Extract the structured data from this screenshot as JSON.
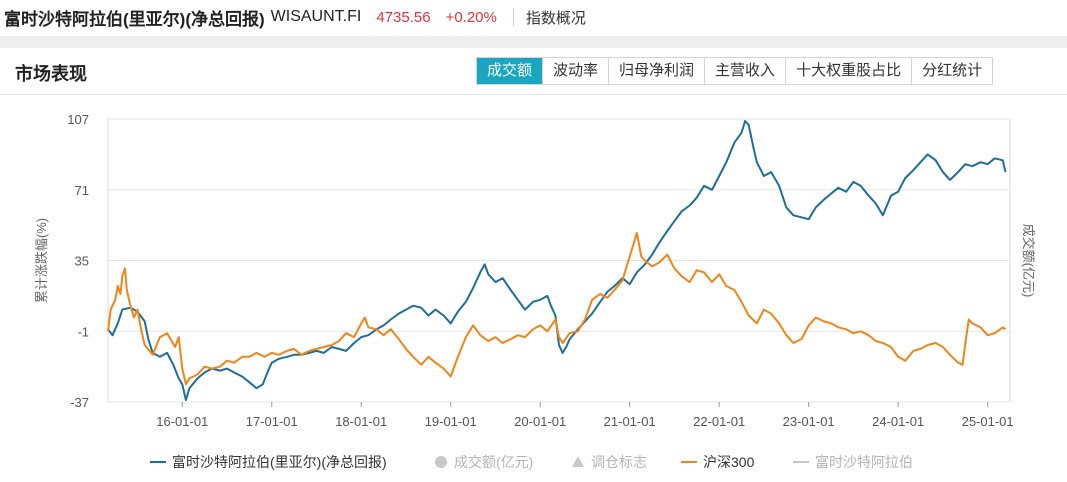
{
  "header": {
    "title": "富时沙特阿拉伯(里亚尔)(净总回报)",
    "code": "WISAUNT.FI",
    "price": "4735.56",
    "change": "+0.20%",
    "overview_link": "指数概况"
  },
  "section": {
    "title": "市场表现",
    "tabs": [
      {
        "label": "成交额",
        "active": true
      },
      {
        "label": "波动率",
        "active": false
      },
      {
        "label": "归母净利润",
        "active": false
      },
      {
        "label": "主营收入",
        "active": false
      },
      {
        "label": "十大权重股占比",
        "active": false
      },
      {
        "label": "分红统计",
        "active": false
      }
    ]
  },
  "colors": {
    "primary_series": "#1f6e96",
    "secondary_series": "#f18518",
    "inactive": "#c8c8c8",
    "active_tab": "#1aa6c0"
  },
  "chart_data": {
    "type": "line",
    "ylabel": "累计涨跌幅(%)",
    "y2label": "成交额(亿元)",
    "ylim": [
      -37,
      107
    ],
    "yticks": [
      "107",
      "71",
      "35",
      "-1",
      "-37"
    ],
    "ytick_values": [
      107,
      71,
      35,
      -1,
      -37
    ],
    "xlim": [
      2015.17,
      2025.25
    ],
    "xticks": [
      "16-01-01",
      "17-01-01",
      "18-01-01",
      "19-01-01",
      "20-01-01",
      "21-01-01",
      "22-01-01",
      "23-01-01",
      "24-01-01",
      "25-01-01"
    ],
    "xtick_values": [
      2016,
      2017,
      2018,
      2019,
      2020,
      2021,
      2022,
      2023,
      2024,
      2025
    ],
    "grid": true,
    "legend_position": "bottom",
    "legend": [
      {
        "label": "富时沙特阿拉伯(里亚尔)(净总回报)",
        "marker": "line",
        "active": true
      },
      {
        "label": "成交额(亿元)",
        "marker": "circle",
        "active": false
      },
      {
        "label": "调仓标志",
        "marker": "triangle",
        "active": false
      },
      {
        "label": "沪深300",
        "marker": "line",
        "active": true
      },
      {
        "label": "富时沙特阿拉伯",
        "marker": "line",
        "active": false
      }
    ],
    "series": [
      {
        "name": "富时沙特阿拉伯(里亚尔)(净总回报)",
        "points": [
          [
            2015.17,
            0
          ],
          [
            2015.22,
            -3
          ],
          [
            2015.28,
            3
          ],
          [
            2015.33,
            10
          ],
          [
            2015.42,
            11
          ],
          [
            2015.5,
            9
          ],
          [
            2015.58,
            4
          ],
          [
            2015.62,
            -5
          ],
          [
            2015.67,
            -12
          ],
          [
            2015.75,
            -14
          ],
          [
            2015.83,
            -12
          ],
          [
            2015.9,
            -18
          ],
          [
            2015.96,
            -25
          ],
          [
            2016.0,
            -28
          ],
          [
            2016.04,
            -36
          ],
          [
            2016.08,
            -30
          ],
          [
            2016.17,
            -25
          ],
          [
            2016.25,
            -22
          ],
          [
            2016.33,
            -20
          ],
          [
            2016.42,
            -21
          ],
          [
            2016.5,
            -20
          ],
          [
            2016.58,
            -22
          ],
          [
            2016.67,
            -24
          ],
          [
            2016.75,
            -27
          ],
          [
            2016.83,
            -30
          ],
          [
            2016.9,
            -28
          ],
          [
            2016.96,
            -21
          ],
          [
            2017.0,
            -17
          ],
          [
            2017.08,
            -15
          ],
          [
            2017.17,
            -14
          ],
          [
            2017.25,
            -13
          ],
          [
            2017.33,
            -13
          ],
          [
            2017.42,
            -12
          ],
          [
            2017.5,
            -11
          ],
          [
            2017.58,
            -12
          ],
          [
            2017.67,
            -9
          ],
          [
            2017.75,
            -10
          ],
          [
            2017.83,
            -11
          ],
          [
            2017.92,
            -7
          ],
          [
            2018.0,
            -4
          ],
          [
            2018.08,
            -3
          ],
          [
            2018.17,
            0
          ],
          [
            2018.25,
            2
          ],
          [
            2018.33,
            5
          ],
          [
            2018.42,
            8
          ],
          [
            2018.5,
            10
          ],
          [
            2018.58,
            12
          ],
          [
            2018.67,
            11
          ],
          [
            2018.75,
            7
          ],
          [
            2018.83,
            10
          ],
          [
            2018.92,
            7
          ],
          [
            2019.0,
            3
          ],
          [
            2019.08,
            9
          ],
          [
            2019.17,
            14
          ],
          [
            2019.25,
            21
          ],
          [
            2019.33,
            29
          ],
          [
            2019.38,
            33
          ],
          [
            2019.42,
            28
          ],
          [
            2019.5,
            24
          ],
          [
            2019.58,
            26
          ],
          [
            2019.67,
            20
          ],
          [
            2019.75,
            15
          ],
          [
            2019.83,
            10
          ],
          [
            2019.92,
            14
          ],
          [
            2020.0,
            15
          ],
          [
            2020.08,
            17
          ],
          [
            2020.12,
            12
          ],
          [
            2020.17,
            7
          ],
          [
            2020.21,
            -8
          ],
          [
            2020.25,
            -12
          ],
          [
            2020.29,
            -9
          ],
          [
            2020.33,
            -5
          ],
          [
            2020.42,
            0
          ],
          [
            2020.5,
            4
          ],
          [
            2020.58,
            8
          ],
          [
            2020.67,
            14
          ],
          [
            2020.75,
            19
          ],
          [
            2020.83,
            22
          ],
          [
            2020.92,
            26
          ],
          [
            2021.0,
            23
          ],
          [
            2021.08,
            29
          ],
          [
            2021.17,
            33
          ],
          [
            2021.25,
            38
          ],
          [
            2021.33,
            44
          ],
          [
            2021.42,
            50
          ],
          [
            2021.5,
            55
          ],
          [
            2021.58,
            60
          ],
          [
            2021.67,
            63
          ],
          [
            2021.75,
            67
          ],
          [
            2021.83,
            73
          ],
          [
            2021.92,
            71
          ],
          [
            2022.0,
            78
          ],
          [
            2022.08,
            85
          ],
          [
            2022.17,
            95
          ],
          [
            2022.25,
            100
          ],
          [
            2022.29,
            106
          ],
          [
            2022.33,
            104
          ],
          [
            2022.38,
            93
          ],
          [
            2022.42,
            85
          ],
          [
            2022.5,
            78
          ],
          [
            2022.58,
            80
          ],
          [
            2022.67,
            73
          ],
          [
            2022.75,
            62
          ],
          [
            2022.83,
            58
          ],
          [
            2022.92,
            57
          ],
          [
            2023.0,
            56
          ],
          [
            2023.08,
            62
          ],
          [
            2023.17,
            66
          ],
          [
            2023.25,
            69
          ],
          [
            2023.33,
            72
          ],
          [
            2023.42,
            70
          ],
          [
            2023.5,
            75
          ],
          [
            2023.58,
            73
          ],
          [
            2023.67,
            68
          ],
          [
            2023.75,
            64
          ],
          [
            2023.83,
            58
          ],
          [
            2023.92,
            68
          ],
          [
            2024.0,
            70
          ],
          [
            2024.08,
            77
          ],
          [
            2024.17,
            81
          ],
          [
            2024.25,
            85
          ],
          [
            2024.33,
            89
          ],
          [
            2024.42,
            86
          ],
          [
            2024.5,
            80
          ],
          [
            2024.58,
            76
          ],
          [
            2024.67,
            80
          ],
          [
            2024.75,
            84
          ],
          [
            2024.83,
            83
          ],
          [
            2024.92,
            85
          ],
          [
            2025.0,
            84
          ],
          [
            2025.08,
            87
          ],
          [
            2025.17,
            86
          ],
          [
            2025.2,
            80
          ]
        ]
      },
      {
        "name": "沪深300",
        "points": [
          [
            2015.17,
            -1
          ],
          [
            2015.2,
            10
          ],
          [
            2015.25,
            15
          ],
          [
            2015.28,
            22
          ],
          [
            2015.31,
            18
          ],
          [
            2015.33,
            27
          ],
          [
            2015.36,
            31
          ],
          [
            2015.38,
            20
          ],
          [
            2015.42,
            12
          ],
          [
            2015.46,
            6
          ],
          [
            2015.5,
            10
          ],
          [
            2015.54,
            0
          ],
          [
            2015.58,
            -8
          ],
          [
            2015.67,
            -13
          ],
          [
            2015.75,
            -4
          ],
          [
            2015.83,
            -2
          ],
          [
            2015.92,
            -9
          ],
          [
            2015.96,
            -4
          ],
          [
            2016.0,
            -20
          ],
          [
            2016.04,
            -28
          ],
          [
            2016.08,
            -25
          ],
          [
            2016.17,
            -23
          ],
          [
            2016.25,
            -19
          ],
          [
            2016.33,
            -20
          ],
          [
            2016.42,
            -19
          ],
          [
            2016.5,
            -16
          ],
          [
            2016.58,
            -17
          ],
          [
            2016.67,
            -14
          ],
          [
            2016.75,
            -14
          ],
          [
            2016.83,
            -12
          ],
          [
            2016.92,
            -14
          ],
          [
            2017.0,
            -12
          ],
          [
            2017.08,
            -13
          ],
          [
            2017.17,
            -11
          ],
          [
            2017.25,
            -10
          ],
          [
            2017.33,
            -13
          ],
          [
            2017.42,
            -11
          ],
          [
            2017.5,
            -10
          ],
          [
            2017.58,
            -9
          ],
          [
            2017.67,
            -8
          ],
          [
            2017.75,
            -6
          ],
          [
            2017.83,
            -2
          ],
          [
            2017.92,
            -4
          ],
          [
            2018.0,
            3
          ],
          [
            2018.04,
            6
          ],
          [
            2018.08,
            1
          ],
          [
            2018.17,
            0
          ],
          [
            2018.25,
            -3
          ],
          [
            2018.33,
            0
          ],
          [
            2018.42,
            -5
          ],
          [
            2018.5,
            -10
          ],
          [
            2018.58,
            -14
          ],
          [
            2018.67,
            -18
          ],
          [
            2018.75,
            -14
          ],
          [
            2018.83,
            -17
          ],
          [
            2018.92,
            -20
          ],
          [
            2019.0,
            -24
          ],
          [
            2019.08,
            -14
          ],
          [
            2019.17,
            -4
          ],
          [
            2019.25,
            2
          ],
          [
            2019.33,
            -3
          ],
          [
            2019.42,
            -6
          ],
          [
            2019.5,
            -4
          ],
          [
            2019.58,
            -7
          ],
          [
            2019.67,
            -5
          ],
          [
            2019.75,
            -3
          ],
          [
            2019.83,
            -4
          ],
          [
            2019.92,
            0
          ],
          [
            2020.0,
            2
          ],
          [
            2020.08,
            -1
          ],
          [
            2020.17,
            5
          ],
          [
            2020.21,
            -4
          ],
          [
            2020.25,
            -7
          ],
          [
            2020.33,
            -2
          ],
          [
            2020.42,
            -1
          ],
          [
            2020.5,
            5
          ],
          [
            2020.58,
            15
          ],
          [
            2020.67,
            18
          ],
          [
            2020.75,
            16
          ],
          [
            2020.83,
            20
          ],
          [
            2020.92,
            25
          ],
          [
            2021.0,
            37
          ],
          [
            2021.04,
            43
          ],
          [
            2021.08,
            49
          ],
          [
            2021.13,
            37
          ],
          [
            2021.17,
            35
          ],
          [
            2021.25,
            32
          ],
          [
            2021.33,
            34
          ],
          [
            2021.42,
            38
          ],
          [
            2021.5,
            31
          ],
          [
            2021.58,
            27
          ],
          [
            2021.67,
            24
          ],
          [
            2021.75,
            30
          ],
          [
            2021.83,
            29
          ],
          [
            2021.92,
            24
          ],
          [
            2022.0,
            28
          ],
          [
            2022.08,
            22
          ],
          [
            2022.17,
            20
          ],
          [
            2022.25,
            14
          ],
          [
            2022.33,
            7
          ],
          [
            2022.42,
            3
          ],
          [
            2022.5,
            10
          ],
          [
            2022.58,
            8
          ],
          [
            2022.67,
            3
          ],
          [
            2022.75,
            -3
          ],
          [
            2022.83,
            -7
          ],
          [
            2022.92,
            -5
          ],
          [
            2023.0,
            2
          ],
          [
            2023.08,
            6
          ],
          [
            2023.17,
            4
          ],
          [
            2023.25,
            3
          ],
          [
            2023.33,
            1
          ],
          [
            2023.42,
            0
          ],
          [
            2023.5,
            -2
          ],
          [
            2023.58,
            -1
          ],
          [
            2023.67,
            -3
          ],
          [
            2023.75,
            -6
          ],
          [
            2023.83,
            -7
          ],
          [
            2023.92,
            -9
          ],
          [
            2024.0,
            -14
          ],
          [
            2024.08,
            -16
          ],
          [
            2024.17,
            -11
          ],
          [
            2024.25,
            -10
          ],
          [
            2024.33,
            -8
          ],
          [
            2024.42,
            -7
          ],
          [
            2024.5,
            -9
          ],
          [
            2024.58,
            -13
          ],
          [
            2024.67,
            -17
          ],
          [
            2024.72,
            -18
          ],
          [
            2024.76,
            -4
          ],
          [
            2024.79,
            5
          ],
          [
            2024.83,
            3
          ],
          [
            2024.92,
            1
          ],
          [
            2025.0,
            -3
          ],
          [
            2025.08,
            -2
          ],
          [
            2025.17,
            1
          ],
          [
            2025.2,
            0
          ]
        ]
      }
    ]
  }
}
